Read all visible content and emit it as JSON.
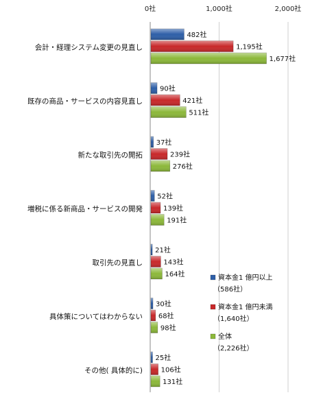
{
  "chart_data": {
    "type": "bar",
    "orientation": "horizontal",
    "xlim": [
      0,
      2000
    ],
    "x_ticks": [
      "0社",
      "1,000社",
      "2,000社"
    ],
    "x_tick_values": [
      0,
      1000,
      2000
    ],
    "grid": true,
    "legend_position": "right",
    "categories": [
      "会計・経理システム変更の見直し",
      "既存の商品・サービスの内容見直し",
      "新たな取引先の開拓",
      "増税に係る新商品・サービスの開発",
      "取引先の見直し",
      "具体策についてはわからない",
      "その他( 具体的に)"
    ],
    "series": [
      {
        "name": "資本金1 億円以上",
        "count_label": "（586社）",
        "color": "#2e5fa8",
        "values": [
          482,
          90,
          37,
          52,
          21,
          30,
          25
        ],
        "labels": [
          "482社",
          "90社",
          "37社",
          "52社",
          "21社",
          "30社",
          "25社"
        ]
      },
      {
        "name": "資本金1 億円未満",
        "count_label": "（1,640社）",
        "color": "#c8282a",
        "values": [
          1195,
          421,
          239,
          139,
          143,
          68,
          106
        ],
        "labels": [
          "1,195社",
          "421社",
          "239社",
          "139社",
          "143社",
          "68社",
          "106社"
        ]
      },
      {
        "name": "全体",
        "count_label": "（2,226社）",
        "color": "#8cb83a",
        "values": [
          1677,
          511,
          276,
          191,
          164,
          98,
          131
        ],
        "labels": [
          "1,677社",
          "511社",
          "276社",
          "191社",
          "164社",
          "98社",
          "131社"
        ]
      }
    ]
  }
}
